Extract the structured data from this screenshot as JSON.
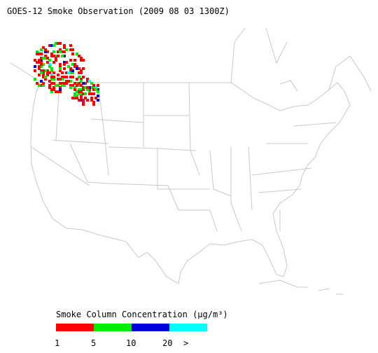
{
  "title": "GOES-12 Smoke Observation (2009 08 03  1300Z)",
  "legend": {
    "title": "Smoke Column Concentration (µg/m³)",
    "colors": [
      "#ff0000",
      "#00ee00",
      "#0000dd",
      "#00ffff"
    ],
    "labels": [
      "1",
      "5",
      "10",
      "20",
      ">"
    ]
  }
}
